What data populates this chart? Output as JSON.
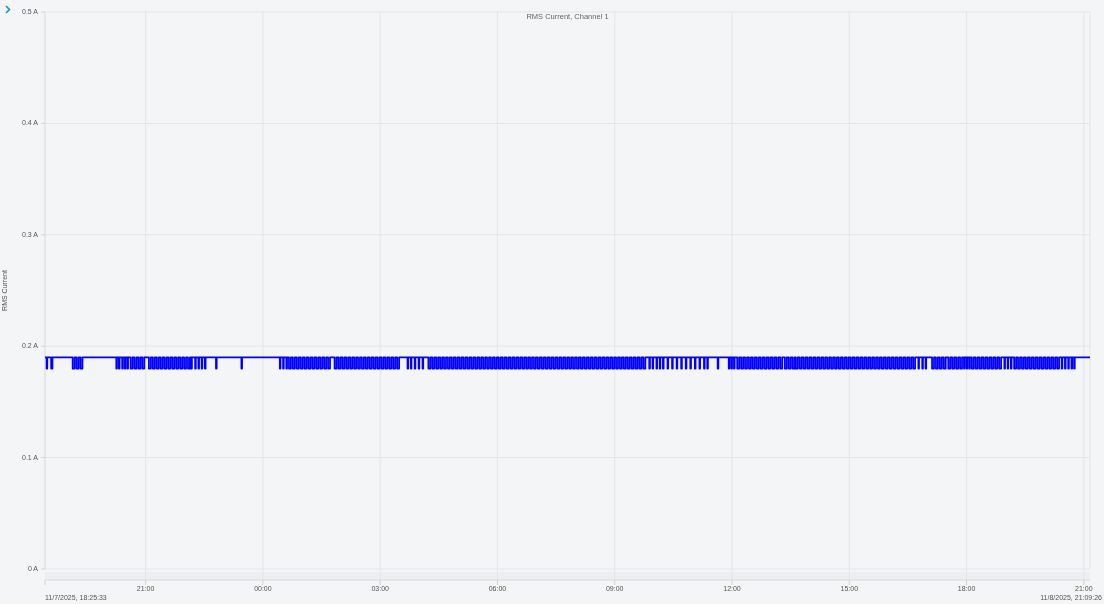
{
  "chart_data": {
    "type": "step",
    "title": "RMS Current, Channel 1",
    "ylabel": "RMS Current",
    "color": "#0000ff",
    "xlim": [
      "2025-11-07T18:25:33",
      "2025-11-08T21:09:26"
    ],
    "xticks": [
      {
        "value": "2025-11-07T21:00",
        "label": "21:00"
      },
      {
        "value": "2025-11-08T00:00",
        "label": "00:00"
      },
      {
        "value": "2025-11-08T03:00",
        "label": "03:00"
      },
      {
        "value": "2025-11-08T06:00",
        "label": "06:00"
      },
      {
        "value": "2025-11-08T09:00",
        "label": "09:00"
      },
      {
        "value": "2025-11-08T12:00",
        "label": "12:00"
      },
      {
        "value": "2025-11-08T15:00",
        "label": "15:00"
      },
      {
        "value": "2025-11-08T18:00",
        "label": "18:00"
      },
      {
        "value": "2025-11-08T21:00",
        "label": "21:00"
      }
    ],
    "annotations": [
      "11/7/2025, 18:25:33",
      "11/8/2025, 21:09:26"
    ],
    "ylim": [
      0,
      0.5
    ],
    "yticks": [
      {
        "value": 0,
        "label": "0 A"
      },
      {
        "value": 0.1,
        "label": "0.1 A"
      },
      {
        "value": 0.2,
        "label": "0.2 A"
      },
      {
        "value": 0.3,
        "label": "0.3 A"
      },
      {
        "value": 0.4,
        "label": "0.4 A"
      },
      {
        "value": 0.5,
        "label": "0.5 A"
      }
    ],
    "grid": true,
    "x": [
      "2025-11-07T18:25:33",
      "2025-11-07T18:28",
      "2025-11-07T18:29",
      "2025-11-07T18:35",
      "2025-11-07T18:37",
      "2025-11-07T19:08",
      "2025-11-07T19:11",
      "2025-11-07T19:14",
      "2025-11-07T19:17",
      "2025-11-07T19:20",
      "2025-11-07T19:23",
      "2025-11-07T20:15",
      "2025-11-07T20:16",
      "2025-11-07T20:19",
      "2025-11-07T20:20",
      "2025-11-07T20:24",
      "2025-11-07T20:25",
      "2025-11-07T20:28",
      "2025-11-07T20:29",
      "2025-11-07T20:32",
      "2025-11-07T20:33",
      "2025-11-07T20:37",
      "2025-11-07T20:40",
      "2025-11-07T20:43",
      "2025-11-07T20:46",
      "2025-11-07T20:49",
      "2025-11-07T20:52",
      "2025-11-07T20:55",
      "2025-11-07T20:58",
      "2025-11-07T21:05",
      "2025-11-07T21:08",
      "2025-11-07T21:11",
      "2025-11-07T21:14",
      "2025-11-07T21:17",
      "2025-11-07T21:20",
      "2025-11-07T21:23",
      "2025-11-07T21:26",
      "2025-11-07T21:29",
      "2025-11-07T21:32",
      "2025-11-07T21:35",
      "2025-11-07T21:38",
      "2025-11-07T21:41",
      "2025-11-07T21:44",
      "2025-11-07T21:47",
      "2025-11-07T21:50",
      "2025-11-07T21:53",
      "2025-11-07T21:56",
      "2025-11-07T21:59",
      "2025-11-07T22:02",
      "2025-11-07T22:05",
      "2025-11-07T22:08",
      "2025-11-07T22:10",
      "2025-11-07T22:11",
      "2025-11-07T22:16",
      "2025-11-07T22:17",
      "2025-11-07T22:21",
      "2025-11-07T22:22",
      "2025-11-07T22:26",
      "2025-11-07T22:27",
      "2025-11-07T22:31",
      "2025-11-07T22:32",
      "2025-11-07T22:48",
      "2025-11-07T22:49",
      "2025-11-07T23:27",
      "2025-11-07T23:28",
      "2025-11-08T00:26",
      "2025-11-08T00:27",
      "2025-11-08T00:31",
      "2025-11-08T00:32",
      "2025-11-08T00:36",
      "2025-11-08T00:37",
      "2025-11-08T00:40",
      "2025-11-08T00:43",
      "2025-11-08T00:46",
      "2025-11-08T00:49",
      "2025-11-08T00:52",
      "2025-11-08T00:55",
      "2025-11-08T00:58",
      "2025-11-08T01:01",
      "2025-11-08T01:04",
      "2025-11-08T01:07",
      "2025-11-08T01:10",
      "2025-11-08T01:13",
      "2025-11-08T01:16",
      "2025-11-08T01:19",
      "2025-11-08T01:22",
      "2025-11-08T01:25",
      "2025-11-08T01:28",
      "2025-11-08T01:31",
      "2025-11-08T01:34",
      "2025-11-08T01:37",
      "2025-11-08T01:40",
      "2025-11-08T01:43",
      "2025-11-08T01:50",
      "2025-11-08T01:53",
      "2025-11-08T01:56",
      "2025-11-08T01:59",
      "2025-11-08T02:02",
      "2025-11-08T02:05",
      "2025-11-08T02:08",
      "2025-11-08T02:11",
      "2025-11-08T02:14",
      "2025-11-08T02:17",
      "2025-11-08T02:20",
      "2025-11-08T02:23",
      "2025-11-08T02:26",
      "2025-11-08T02:29",
      "2025-11-08T02:32",
      "2025-11-08T02:35",
      "2025-11-08T02:38",
      "2025-11-08T02:41",
      "2025-11-08T02:44",
      "2025-11-08T02:47",
      "2025-11-08T02:50",
      "2025-11-08T02:53",
      "2025-11-08T02:56",
      "2025-11-08T02:59",
      "2025-11-08T03:02",
      "2025-11-08T03:05",
      "2025-11-08T03:08",
      "2025-11-08T03:11",
      "2025-11-08T03:14",
      "2025-11-08T03:17",
      "2025-11-08T03:20",
      "2025-11-08T03:23",
      "2025-11-08T03:26",
      "2025-11-08T03:29",
      "2025-11-08T03:42",
      "2025-11-08T03:43",
      "2025-11-08T03:47",
      "2025-11-08T03:48",
      "2025-11-08T03:53",
      "2025-11-08T03:54",
      "2025-11-08T03:59",
      "2025-11-08T04:00",
      "2025-11-08T04:05",
      "2025-11-08T04:06",
      "2025-11-08T04:14",
      "2025-11-08T04:17",
      "2025-11-08T04:20",
      "2025-11-08T04:23",
      "2025-11-08T04:26",
      "2025-11-08T04:29",
      "2025-11-08T04:32",
      "2025-11-08T04:35",
      "2025-11-08T04:38",
      "2025-11-08T04:41",
      "2025-11-08T04:44",
      "2025-11-08T04:47",
      "2025-11-08T04:50",
      "2025-11-08T04:53",
      "2025-11-08T04:56",
      "2025-11-08T04:59",
      "2025-11-08T05:02",
      "2025-11-08T05:05",
      "2025-11-08T05:08",
      "2025-11-08T05:11",
      "2025-11-08T05:14",
      "2025-11-08T05:17",
      "2025-11-08T05:20",
      "2025-11-08T05:23",
      "2025-11-08T05:26",
      "2025-11-08T05:29",
      "2025-11-08T05:32",
      "2025-11-08T05:35",
      "2025-11-08T05:38",
      "2025-11-08T05:41",
      "2025-11-08T05:44",
      "2025-11-08T05:47",
      "2025-11-08T05:50",
      "2025-11-08T05:53",
      "2025-11-08T05:56",
      "2025-11-08T05:59",
      "2025-11-08T06:02",
      "2025-11-08T06:05",
      "2025-11-08T06:08",
      "2025-11-08T06:11",
      "2025-11-08T06:14",
      "2025-11-08T06:17",
      "2025-11-08T06:20",
      "2025-11-08T06:23",
      "2025-11-08T06:26",
      "2025-11-08T06:29",
      "2025-11-08T06:32",
      "2025-11-08T06:35",
      "2025-11-08T06:38",
      "2025-11-08T06:41",
      "2025-11-08T06:44",
      "2025-11-08T06:47",
      "2025-11-08T06:50",
      "2025-11-08T06:53",
      "2025-11-08T06:56",
      "2025-11-08T06:59",
      "2025-11-08T07:02",
      "2025-11-08T07:05",
      "2025-11-08T07:08",
      "2025-11-08T07:11",
      "2025-11-08T07:14",
      "2025-11-08T07:17",
      "2025-11-08T07:20",
      "2025-11-08T07:23",
      "2025-11-08T07:26",
      "2025-11-08T07:29",
      "2025-11-08T07:32",
      "2025-11-08T07:35",
      "2025-11-08T07:38",
      "2025-11-08T07:41",
      "2025-11-08T07:44",
      "2025-11-08T07:47",
      "2025-11-08T07:50",
      "2025-11-08T07:53",
      "2025-11-08T07:56",
      "2025-11-08T07:59",
      "2025-11-08T08:02",
      "2025-11-08T08:05",
      "2025-11-08T08:08",
      "2025-11-08T08:11",
      "2025-11-08T08:14",
      "2025-11-08T08:17",
      "2025-11-08T08:20",
      "2025-11-08T08:23",
      "2025-11-08T08:26",
      "2025-11-08T08:29",
      "2025-11-08T08:32",
      "2025-11-08T08:35",
      "2025-11-08T08:38",
      "2025-11-08T08:41",
      "2025-11-08T08:44",
      "2025-11-08T08:47",
      "2025-11-08T08:50",
      "2025-11-08T08:53",
      "2025-11-08T08:56",
      "2025-11-08T08:59",
      "2025-11-08T09:02",
      "2025-11-08T09:05",
      "2025-11-08T09:08",
      "2025-11-08T09:11",
      "2025-11-08T09:14",
      "2025-11-08T09:17",
      "2025-11-08T09:20",
      "2025-11-08T09:23",
      "2025-11-08T09:26",
      "2025-11-08T09:29",
      "2025-11-08T09:32",
      "2025-11-08T09:35",
      "2025-11-08T09:38",
      "2025-11-08T09:41",
      "2025-11-08T09:44",
      "2025-11-08T09:47",
      "2025-11-08T09:53",
      "2025-11-08T09:54",
      "2025-11-08T09:58",
      "2025-11-08T09:59",
      "2025-11-08T10:04",
      "2025-11-08T10:05",
      "2025-11-08T10:09",
      "2025-11-08T10:10",
      "2025-11-08T10:14",
      "2025-11-08T10:15",
      "2025-11-08T10:21",
      "2025-11-08T10:22",
      "2025-11-08T10:28",
      "2025-11-08T10:29",
      "2025-11-08T10:35",
      "2025-11-08T10:36",
      "2025-11-08T10:42",
      "2025-11-08T10:43",
      "2025-11-08T10:49",
      "2025-11-08T10:50",
      "2025-11-08T10:56",
      "2025-11-08T10:57",
      "2025-11-08T11:03",
      "2025-11-08T11:04",
      "2025-11-08T11:10",
      "2025-11-08T11:11",
      "2025-11-08T11:17",
      "2025-11-08T11:18",
      "2025-11-08T11:22",
      "2025-11-08T11:23",
      "2025-11-08T11:38",
      "2025-11-08T11:39",
      "2025-11-08T11:55",
      "2025-11-08T11:56",
      "2025-11-08T11:59",
      "2025-11-08T12:00",
      "2025-11-08T12:03",
      "2025-11-08T12:04",
      "2025-11-08T12:08",
      "2025-11-08T12:11",
      "2025-11-08T12:14",
      "2025-11-08T12:17",
      "2025-11-08T12:20",
      "2025-11-08T12:23",
      "2025-11-08T12:26",
      "2025-11-08T12:29",
      "2025-11-08T12:32",
      "2025-11-08T12:35",
      "2025-11-08T12:38",
      "2025-11-08T12:41",
      "2025-11-08T12:44",
      "2025-11-08T12:47",
      "2025-11-08T12:50",
      "2025-11-08T12:53",
      "2025-11-08T12:56",
      "2025-11-08T12:59",
      "2025-11-08T13:02",
      "2025-11-08T13:05",
      "2025-11-08T13:08",
      "2025-11-08T13:11",
      "2025-11-08T13:14",
      "2025-11-08T13:17",
      "2025-11-08T13:21",
      "2025-11-08T13:24",
      "2025-11-08T13:27",
      "2025-11-08T13:30",
      "2025-11-08T13:33",
      "2025-11-08T13:36",
      "2025-11-08T13:38",
      "2025-11-08T13:41",
      "2025-11-08T13:44",
      "2025-11-08T13:47",
      "2025-11-08T13:50",
      "2025-11-08T13:53",
      "2025-11-08T13:56",
      "2025-11-08T13:59",
      "2025-11-08T14:02",
      "2025-11-08T14:05",
      "2025-11-08T14:08",
      "2025-11-08T14:11",
      "2025-11-08T14:14",
      "2025-11-08T14:17",
      "2025-11-08T14:20",
      "2025-11-08T14:23",
      "2025-11-08T14:26",
      "2025-11-08T14:29",
      "2025-11-08T14:32",
      "2025-11-08T14:35",
      "2025-11-08T14:38",
      "2025-11-08T14:41",
      "2025-11-08T14:44",
      "2025-11-08T14:47",
      "2025-11-08T14:50",
      "2025-11-08T14:53",
      "2025-11-08T14:56",
      "2025-11-08T14:59",
      "2025-11-08T15:02",
      "2025-11-08T15:05",
      "2025-11-08T15:08",
      "2025-11-08T15:11",
      "2025-11-08T15:14",
      "2025-11-08T15:17",
      "2025-11-08T15:20",
      "2025-11-08T15:23",
      "2025-11-08T15:26",
      "2025-11-08T15:29",
      "2025-11-08T15:32",
      "2025-11-08T15:35",
      "2025-11-08T15:38",
      "2025-11-08T15:41",
      "2025-11-08T15:44",
      "2025-11-08T15:47",
      "2025-11-08T15:50",
      "2025-11-08T15:53",
      "2025-11-08T15:56",
      "2025-11-08T15:59",
      "2025-11-08T16:02",
      "2025-11-08T16:05",
      "2025-11-08T16:08",
      "2025-11-08T16:11",
      "2025-11-08T16:14",
      "2025-11-08T16:17",
      "2025-11-08T16:20",
      "2025-11-08T16:23",
      "2025-11-08T16:26",
      "2025-11-08T16:29",
      "2025-11-08T16:32",
      "2025-11-08T16:35",
      "2025-11-08T16:38",
      "2025-11-08T16:41",
      "2025-11-08T16:46",
      "2025-11-08T16:47",
      "2025-11-08T16:52",
      "2025-11-08T16:53",
      "2025-11-08T16:57",
      "2025-11-08T16:58",
      "2025-11-08T17:07",
      "2025-11-08T17:10",
      "2025-11-08T17:13",
      "2025-11-08T17:16",
      "2025-11-08T17:19",
      "2025-11-08T17:22",
      "2025-11-08T17:25",
      "2025-11-08T17:28",
      "2025-11-08T17:32",
      "2025-11-08T17:35",
      "2025-11-08T17:38",
      "2025-11-08T17:41",
      "2025-11-08T17:44",
      "2025-11-08T17:47",
      "2025-11-08T17:50",
      "2025-11-08T17:53",
      "2025-11-08T17:56",
      "2025-11-08T17:57",
      "2025-11-08T18:00",
      "2025-11-08T18:01",
      "2025-11-08T18:04",
      "2025-11-08T18:05",
      "2025-11-08T18:08",
      "2025-11-08T18:11",
      "2025-11-08T18:14",
      "2025-11-08T18:17",
      "2025-11-08T18:20",
      "2025-11-08T18:23",
      "2025-11-08T18:26",
      "2025-11-08T18:29",
      "2025-11-08T18:32",
      "2025-11-08T18:35",
      "2025-11-08T18:38",
      "2025-11-08T18:41",
      "2025-11-08T18:44",
      "2025-11-08T18:47",
      "2025-11-08T18:50",
      "2025-11-08T18:53",
      "2025-11-08T18:58",
      "2025-11-08T18:59",
      "2025-11-08T19:03",
      "2025-11-08T19:04",
      "2025-11-08T19:08",
      "2025-11-08T19:09",
      "2025-11-08T19:13",
      "2025-11-08T19:16",
      "2025-11-08T19:19",
      "2025-11-08T19:22",
      "2025-11-08T19:25",
      "2025-11-08T19:28",
      "2025-11-08T19:31",
      "2025-11-08T19:34",
      "2025-11-08T19:37",
      "2025-11-08T19:40",
      "2025-11-08T19:43",
      "2025-11-08T19:46",
      "2025-11-08T19:49",
      "2025-11-08T19:52",
      "2025-11-08T19:55",
      "2025-11-08T19:58",
      "2025-11-08T20:01",
      "2025-11-08T20:04",
      "2025-11-08T20:07",
      "2025-11-08T20:10",
      "2025-11-08T20:13",
      "2025-11-08T20:16",
      "2025-11-08T20:19",
      "2025-11-08T20:22",
      "2025-11-08T20:26",
      "2025-11-08T20:27",
      "2025-11-08T20:31",
      "2025-11-08T20:32",
      "2025-11-08T20:36",
      "2025-11-08T20:37",
      "2025-11-08T20:41",
      "2025-11-08T20:42",
      "2025-11-08T20:45",
      "2025-11-08T20:46",
      "2025-11-08T21:09:26"
    ],
    "values": [
      0.19,
      0.18,
      0.19,
      0.18,
      0.19,
      0.18,
      0.19,
      0.18,
      0.19,
      0.18,
      0.19,
      0.18,
      0.19,
      0.18,
      0.19,
      0.18,
      0.19,
      0.18,
      0.19,
      0.18,
      0.19,
      0.18,
      0.19,
      0.18,
      0.19,
      0.18,
      0.19,
      0.18,
      0.19,
      0.18,
      0.19,
      0.18,
      0.19,
      0.18,
      0.19,
      0.18,
      0.19,
      0.18,
      0.19,
      0.18,
      0.19,
      0.18,
      0.19,
      0.18,
      0.19,
      0.18,
      0.19,
      0.18,
      0.19,
      0.18,
      0.19,
      0.18,
      0.19,
      0.18,
      0.19,
      0.18,
      0.19,
      0.18,
      0.19,
      0.18,
      0.19,
      0.18,
      0.19,
      0.18,
      0.19,
      0.18,
      0.19,
      0.18,
      0.19,
      0.18,
      0.19,
      0.18,
      0.19,
      0.18,
      0.19,
      0.18,
      0.19,
      0.18,
      0.19,
      0.18,
      0.19,
      0.18,
      0.19,
      0.18,
      0.19,
      0.18,
      0.19,
      0.18,
      0.19,
      0.18,
      0.19,
      0.18,
      0.19,
      0.18,
      0.19,
      0.18,
      0.19,
      0.18,
      0.19,
      0.18,
      0.19,
      0.18,
      0.19,
      0.18,
      0.19,
      0.18,
      0.19,
      0.18,
      0.19,
      0.18,
      0.19,
      0.18,
      0.19,
      0.18,
      0.19,
      0.18,
      0.19,
      0.18,
      0.19,
      0.18,
      0.19,
      0.18,
      0.19,
      0.18,
      0.19,
      0.18,
      0.19,
      0.18,
      0.19,
      0.18,
      0.19,
      0.18,
      0.19,
      0.18,
      0.19,
      0.18,
      0.19,
      0.18,
      0.19,
      0.18,
      0.19,
      0.18,
      0.19,
      0.18,
      0.19,
      0.18,
      0.19,
      0.18,
      0.19,
      0.18,
      0.19,
      0.18,
      0.19,
      0.18,
      0.19,
      0.18,
      0.19,
      0.18,
      0.19,
      0.18,
      0.19,
      0.18,
      0.19,
      0.18,
      0.19,
      0.18,
      0.19,
      0.18,
      0.19,
      0.18,
      0.19,
      0.18,
      0.19,
      0.18,
      0.19,
      0.18,
      0.19,
      0.18,
      0.19,
      0.18,
      0.19,
      0.18,
      0.19,
      0.18,
      0.19,
      0.18,
      0.19,
      0.18,
      0.19,
      0.18,
      0.19,
      0.18,
      0.19,
      0.18,
      0.19,
      0.18,
      0.19,
      0.18,
      0.19,
      0.18,
      0.19,
      0.18,
      0.19,
      0.18,
      0.19,
      0.18,
      0.19,
      0.18,
      0.19,
      0.18,
      0.19,
      0.18,
      0.19,
      0.18,
      0.19,
      0.18,
      0.19,
      0.18,
      0.19,
      0.18,
      0.19,
      0.18,
      0.19,
      0.18,
      0.19,
      0.18,
      0.19,
      0.18,
      0.19,
      0.18,
      0.19,
      0.18,
      0.19,
      0.18,
      0.19,
      0.18,
      0.19,
      0.18,
      0.19,
      0.18,
      0.19,
      0.18,
      0.19,
      0.18,
      0.19,
      0.18,
      0.19,
      0.18,
      0.19,
      0.18,
      0.19,
      0.18,
      0.19,
      0.18,
      0.19,
      0.18,
      0.19,
      0.18,
      0.19,
      0.18,
      0.19,
      0.18,
      0.19,
      0.18,
      0.19,
      0.18,
      0.19,
      0.18,
      0.19,
      0.18,
      0.19,
      0.18,
      0.19,
      0.18,
      0.19,
      0.18,
      0.19,
      0.18,
      0.19,
      0.18,
      0.19,
      0.18,
      0.19,
      0.18,
      0.19,
      0.18,
      0.19,
      0.18,
      0.19,
      0.18,
      0.19,
      0.18,
      0.19,
      0.18,
      0.19,
      0.18,
      0.19,
      0.18,
      0.19,
      0.18,
      0.19,
      0.18,
      0.19,
      0.18,
      0.19,
      0.18,
      0.19,
      0.18,
      0.19,
      0.18,
      0.19,
      0.18,
      0.19,
      0.18,
      0.19,
      0.18,
      0.19,
      0.18,
      0.19,
      0.18,
      0.19,
      0.18,
      0.19,
      0.18,
      0.19,
      0.18,
      0.19,
      0.18,
      0.19,
      0.18,
      0.19,
      0.18,
      0.19,
      0.18,
      0.19,
      0.18,
      0.19,
      0.18,
      0.19,
      0.18,
      0.19,
      0.18,
      0.19,
      0.18,
      0.19,
      0.18,
      0.19,
      0.18,
      0.19,
      0.18,
      0.19,
      0.18,
      0.19,
      0.18,
      0.19,
      0.18,
      0.19,
      0.18,
      0.19,
      0.18,
      0.19,
      0.18,
      0.19,
      0.18,
      0.19,
      0.18,
      0.19,
      0.18,
      0.19,
      0.18,
      0.19,
      0.18,
      0.19,
      0.18,
      0.19,
      0.18,
      0.19,
      0.18,
      0.19,
      0.18,
      0.19,
      0.18,
      0.19,
      0.18,
      0.19,
      0.18,
      0.19,
      0.18,
      0.19,
      0.18,
      0.19,
      0.18,
      0.19,
      0.18,
      0.19,
      0.18,
      0.19,
      0.18,
      0.19,
      0.18,
      0.19,
      0.18,
      0.19,
      0.18,
      0.19,
      0.18,
      0.19,
      0.18,
      0.19,
      0.18,
      0.19,
      0.18,
      0.19,
      0.18,
      0.19,
      0.18,
      0.19,
      0.18,
      0.19,
      0.18,
      0.19,
      0.18,
      0.19,
      0.18,
      0.19,
      0.18,
      0.19,
      0.18,
      0.19,
      0.18,
      0.19,
      0.18,
      0.19,
      0.18,
      0.19,
      0.18,
      0.19,
      0.18,
      0.19,
      0.18,
      0.19,
      0.18,
      0.19,
      0.18,
      0.19,
      0.18,
      0.19,
      0.18,
      0.19,
      0.18,
      0.19,
      0.18,
      0.19,
      0.18,
      0.19,
      0.18,
      0.19,
      0.18,
      0.19,
      0.18,
      0.19,
      0.18,
      0.19,
      0.19
    ]
  }
}
